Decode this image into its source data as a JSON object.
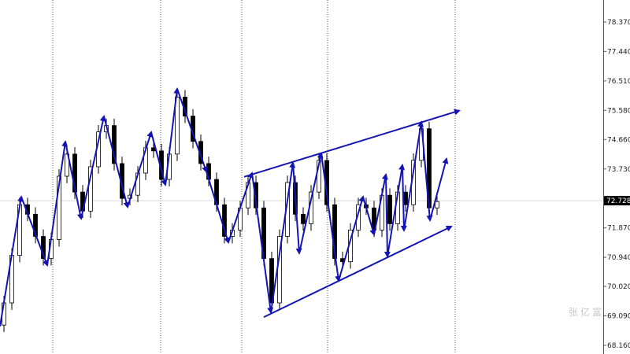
{
  "chart_data": {
    "type": "candlestick",
    "title": "",
    "xlabel": "",
    "ylabel": "",
    "ylim": [
      68.0,
      79.0
    ],
    "y_ticks": [
      "78.370",
      "77.440",
      "76.510",
      "75.580",
      "74.660",
      "73.730",
      "71.870",
      "70.940",
      "70.020",
      "69.090",
      "68.160"
    ],
    "current_price": "72.728",
    "grid": "vertical dotted",
    "colors": {
      "up_body": "#ffffff",
      "down_body": "#000000",
      "outline": "#000000",
      "annotation": "#1414b4",
      "price_line": "#d0d0d0"
    },
    "closes": [
      69.5,
      71.0,
      72.6,
      72.3,
      71.6,
      70.9,
      71.5,
      73.5,
      74.2,
      73.0,
      72.4,
      73.8,
      74.9,
      75.1,
      73.9,
      72.8,
      72.9,
      73.6,
      74.4,
      74.3,
      73.4,
      74.2,
      76.0,
      75.4,
      74.6,
      73.9,
      73.4,
      72.6,
      71.6,
      71.8,
      72.5,
      73.3,
      72.5,
      70.9,
      69.5,
      71.6,
      73.3,
      72.3,
      72.0,
      73.0,
      74.0,
      72.6,
      70.9,
      70.8,
      71.8,
      72.6,
      72.5,
      71.8,
      72.9,
      72.0,
      73.0,
      72.6,
      74.0,
      75.0,
      72.5,
      72.7
    ],
    "first_open": 68.8,
    "zigzag": [
      [
        0,
        68.76
      ],
      [
        2.7,
        72.85
      ],
      [
        6.0,
        70.69
      ],
      [
        8.3,
        74.59
      ],
      [
        10.3,
        72.16
      ],
      [
        13.2,
        75.39
      ],
      [
        16.2,
        72.53
      ],
      [
        19.2,
        74.89
      ],
      [
        21.0,
        73.23
      ],
      [
        22.5,
        76.26
      ],
      [
        26.2,
        73.65
      ],
      [
        29.0,
        71.41
      ],
      [
        32.0,
        73.6
      ],
      [
        34.4,
        69.2
      ],
      [
        37.2,
        73.92
      ],
      [
        38.0,
        71.07
      ],
      [
        40.8,
        74.22
      ],
      [
        43.0,
        70.2
      ],
      [
        46.1,
        72.85
      ],
      [
        47.5,
        71.66
      ],
      [
        49.0,
        73.55
      ],
      [
        49.2,
        70.97
      ],
      [
        51.1,
        73.85
      ],
      [
        51.3,
        71.79
      ],
      [
        53.5,
        75.21
      ],
      [
        54.6,
        72.11
      ],
      [
        56.7,
        74.05
      ]
    ],
    "channel_upper": [
      [
        31.0,
        73.48
      ],
      [
        58.3,
        75.57
      ]
    ],
    "channel_lower": [
      [
        33.5,
        69.05
      ],
      [
        57.3,
        71.91
      ]
    ],
    "vertical_grid_bars": [
      6.7,
      20.4,
      30.7,
      41.6,
      57.8
    ]
  },
  "watermark": "张亿富"
}
